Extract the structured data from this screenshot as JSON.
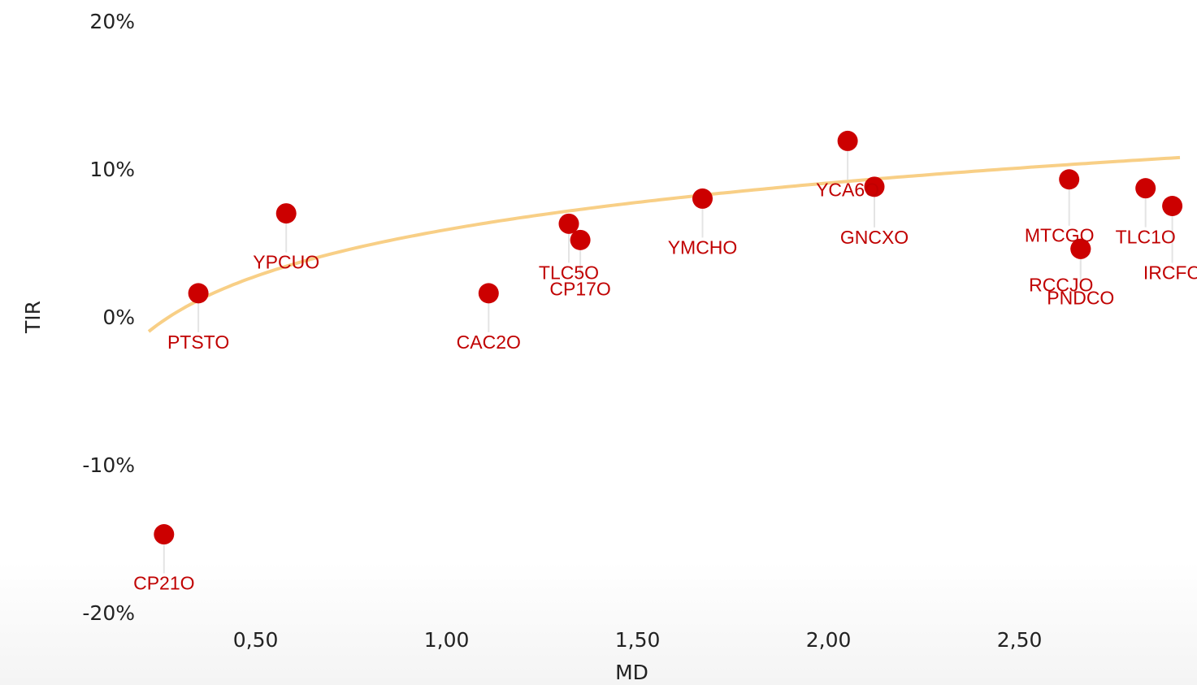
{
  "chart_data": {
    "type": "scatter",
    "xlabel": "MD",
    "ylabel": "TIR",
    "xlim": [
      0.22,
      2.92
    ],
    "ylim": [
      -0.2,
      0.2
    ],
    "x_ticks": [
      0.5,
      1.0,
      1.5,
      2.0,
      2.5
    ],
    "x_tick_labels": [
      "0,50",
      "1,00",
      "1,50",
      "2,00",
      "2,50"
    ],
    "y_ticks": [
      0.2,
      0.1,
      0.0,
      -0.1,
      -0.2
    ],
    "y_tick_labels": [
      "20%",
      "10%",
      "0%",
      "-10%",
      "-20%"
    ],
    "grid": false,
    "legend": "none",
    "colors": {
      "point": "#cc0000",
      "label": "#c00000",
      "trend": "#f8cf86",
      "stem": "#e4e4e4"
    },
    "points": [
      {
        "label": "CP21O",
        "x": 0.26,
        "y": -0.147
      },
      {
        "label": "PTSTO",
        "x": 0.35,
        "y": 0.016
      },
      {
        "label": "YPCUO",
        "x": 0.58,
        "y": 0.07
      },
      {
        "label": "CAC2O",
        "x": 1.11,
        "y": 0.016
      },
      {
        "label": "TLC5O",
        "x": 1.32,
        "y": 0.063
      },
      {
        "label": "CP17O",
        "x": 1.35,
        "y": 0.052
      },
      {
        "label": "YMCHO",
        "x": 1.67,
        "y": 0.08
      },
      {
        "label": "YCA6O",
        "x": 2.05,
        "y": 0.119
      },
      {
        "label": "GNCXO",
        "x": 2.12,
        "y": 0.088
      },
      {
        "label": "MTCGO",
        "x": 2.63,
        "y": 0.093
      },
      {
        "label": "RCCJO",
        "x": 2.66,
        "y": 0.046
      },
      {
        "label": "PNDCO",
        "x": 2.66,
        "y": 0.046
      },
      {
        "label": "TLC1O",
        "x": 2.83,
        "y": 0.087
      },
      {
        "label": "IRCFO",
        "x": 2.9,
        "y": 0.075
      }
    ],
    "trendline": {
      "type": "logarithmic",
      "a": 0.059,
      "b": 0.0455
    }
  }
}
